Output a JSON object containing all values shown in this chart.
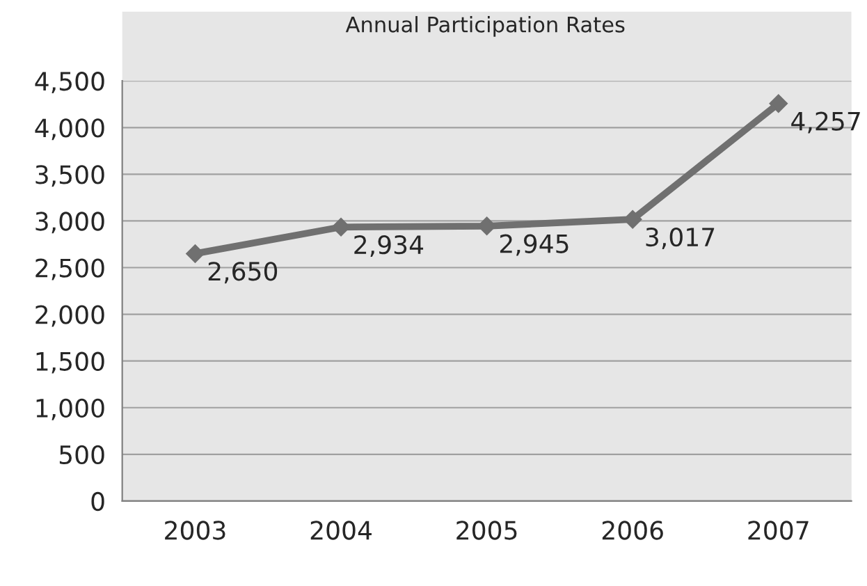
{
  "chart_data": {
    "type": "line",
    "title": "Annual Participation Rates",
    "categories": [
      "2003",
      "2004",
      "2005",
      "2006",
      "2007"
    ],
    "series": [
      {
        "color": "#707070",
        "values": [
          2650,
          2934,
          2945,
          3017,
          4257
        ],
        "value_labels": [
          "2,650",
          "2,934",
          "2,945",
          "3,017",
          "4,257"
        ]
      }
    ],
    "ylim": [
      0,
      4500
    ],
    "yticks": [
      0,
      500,
      {
        "value": 1000,
        "label": "1,000"
      },
      {
        "value": 1500,
        "label": "1,500"
      },
      {
        "value": 2000,
        "label": "2,000"
      },
      {
        "value": 2500,
        "label": "2,500"
      },
      {
        "value": 3000,
        "label": "3,000"
      },
      {
        "value": 3500,
        "label": "3,500"
      },
      {
        "value": 4000,
        "label": "4,000"
      },
      {
        "value": 4500,
        "label": "4,500"
      }
    ],
    "grid": "y",
    "marker": "diamond",
    "line_style": "solid"
  }
}
